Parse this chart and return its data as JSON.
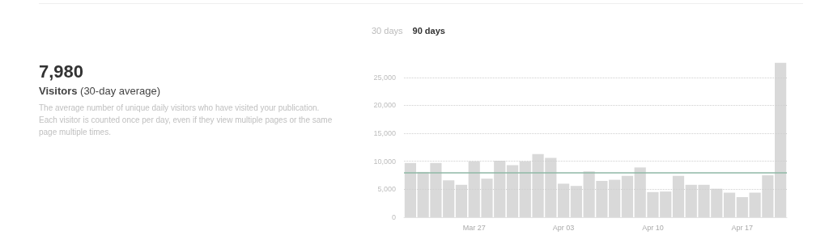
{
  "chart_data": {
    "type": "bar",
    "title": "7,980",
    "subtitle": "Visitors (30-day average)",
    "annotations": [
      "The average number of unique daily visitors who have visited your publication. Each visitor is counted once per day, even if they view multiple pages or the same page multiple times.",
      "30 days",
      "90 days"
    ],
    "categories": [
      null,
      null,
      null,
      null,
      null,
      "Mar 27",
      null,
      null,
      null,
      null,
      null,
      null,
      "Apr 03",
      null,
      null,
      null,
      null,
      null,
      null,
      "Apr 10",
      null,
      null,
      null,
      null,
      null,
      null,
      "Apr 17",
      null,
      null,
      null
    ],
    "values": [
      9700,
      8100,
      9700,
      6600,
      5800,
      10000,
      6900,
      10100,
      9300,
      10000,
      11300,
      10600,
      6000,
      5600,
      8200,
      6500,
      6700,
      7400,
      8900,
      4500,
      4600,
      7400,
      5800,
      5800,
      5100,
      4400,
      3600,
      4400,
      7500,
      27600
    ],
    "color": "#d9d9d9",
    "ylim": [
      0,
      28000
    ],
    "yticks": [
      {
        "value": 0,
        "label": "0"
      },
      {
        "value": 5000,
        "label": "5,000"
      },
      {
        "value": 10000,
        "label": "10,000"
      },
      {
        "value": 15000,
        "label": "15,000"
      },
      {
        "value": 20000,
        "label": "20,000"
      },
      {
        "value": 25000,
        "label": "25,000"
      }
    ],
    "grid": "y",
    "ref_lines": [
      {
        "axis": "y",
        "value": 7980,
        "color": "#8fb9a6"
      }
    ]
  }
}
